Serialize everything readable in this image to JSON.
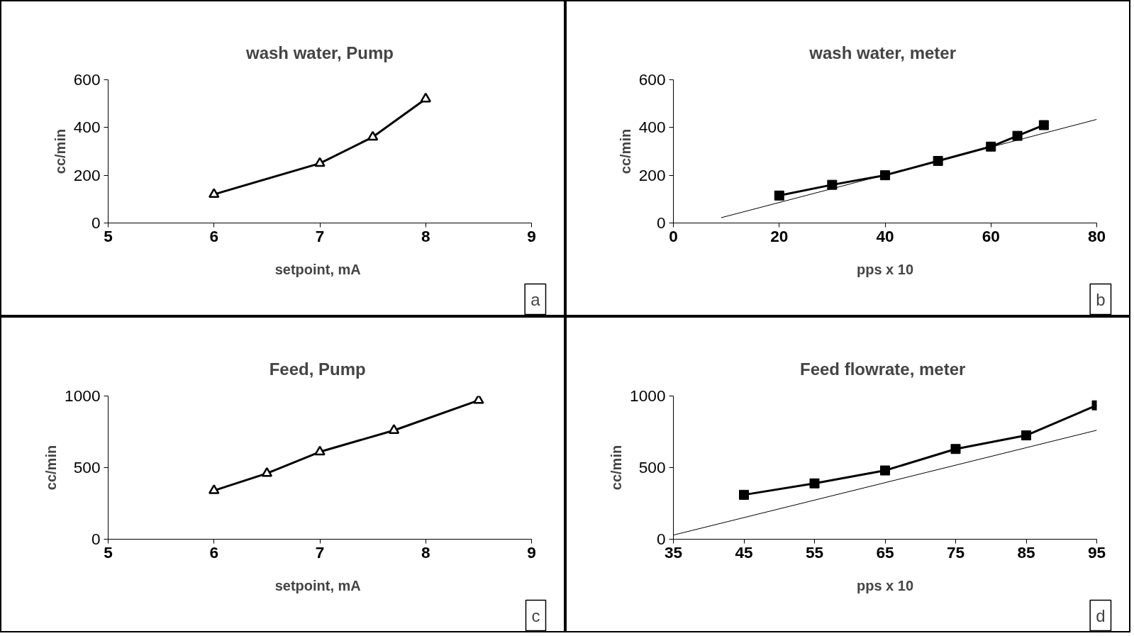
{
  "chart_data": [
    {
      "type": "line",
      "title": "wash water, Pump",
      "xlabel": "setpoint,  mA",
      "ylabel": "cc/min",
      "annotations": [
        "a"
      ],
      "x": [
        6,
        7,
        7.5,
        8
      ],
      "marker": "triangle",
      "grid": false,
      "series": [
        {
          "color": "#000000",
          "values": [
            120,
            250,
            360,
            520
          ]
        }
      ],
      "xlim": [
        5,
        9
      ],
      "xticks": [
        5,
        6,
        7,
        8,
        9
      ],
      "ylim": [
        0,
        600
      ],
      "yticks": [
        0,
        200,
        400,
        600
      ]
    },
    {
      "type": "line",
      "title": "wash water,  meter",
      "xlabel": "pps x 10",
      "ylabel": "cc/min",
      "annotations": [
        "b"
      ],
      "marker": "square",
      "grid": false,
      "series": [
        {
          "color": "#000000",
          "x": [
            20,
            30,
            40,
            50,
            60,
            65,
            70
          ],
          "values": [
            115,
            160,
            200,
            260,
            320,
            365,
            410
          ]
        },
        {
          "color": "#000000",
          "x": [
            9,
            80
          ],
          "values": [
            22,
            434
          ],
          "marker": "none"
        }
      ],
      "xlim": [
        0,
        80
      ],
      "xticks": [
        0,
        20,
        40,
        60,
        80
      ],
      "ylim": [
        0,
        600
      ],
      "yticks": [
        0,
        200,
        400,
        600
      ]
    },
    {
      "type": "line",
      "title": "Feed,  Pump",
      "xlabel": "setpoint,  mA",
      "ylabel": "cc/min",
      "annotations": [
        "c"
      ],
      "x": [
        6,
        6.5,
        7,
        7.7,
        8.5
      ],
      "marker": "triangle",
      "grid": false,
      "series": [
        {
          "color": "#000000",
          "values": [
            340,
            460,
            610,
            760,
            970
          ]
        }
      ],
      "xlim": [
        5,
        9
      ],
      "xticks": [
        5,
        6,
        7,
        8,
        9
      ],
      "ylim": [
        0,
        1000
      ],
      "yticks": [
        0,
        500,
        1000
      ]
    },
    {
      "type": "line",
      "title": "Feed  flowrate, meter",
      "xlabel": "pps x 10",
      "ylabel": "cc/min",
      "annotations": [
        "d"
      ],
      "marker": "square",
      "grid": false,
      "series": [
        {
          "color": "#000000",
          "x": [
            45,
            55,
            65,
            75,
            85,
            95
          ],
          "values": [
            310,
            390,
            480,
            630,
            725,
            935
          ]
        },
        {
          "color": "#000000",
          "x": [
            35,
            95
          ],
          "values": [
            29,
            761
          ],
          "marker": "none"
        }
      ],
      "xlim": [
        35,
        95
      ],
      "xticks": [
        35,
        45,
        55,
        65,
        75,
        85,
        95
      ],
      "ylim": [
        0,
        1000
      ],
      "yticks": [
        0,
        500,
        1000
      ]
    }
  ]
}
